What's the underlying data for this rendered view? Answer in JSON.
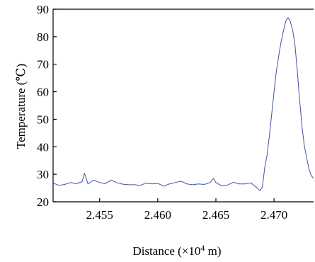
{
  "chart_data": {
    "type": "line",
    "title": "",
    "xlabel": "Distance (×10",
    "xlabel_exponent": "4",
    "xlabel_unit": " m)",
    "ylabel": "Temperature (℃)",
    "xlim": [
      2.451,
      2.4734
    ],
    "ylim": [
      20,
      90
    ],
    "x_ticks": [
      2.455,
      2.46,
      2.465,
      2.47
    ],
    "x_tick_labels": [
      "2.455",
      "2.460",
      "2.465",
      "2.470"
    ],
    "y_ticks": [
      20,
      30,
      40,
      50,
      60,
      70,
      80,
      90
    ],
    "y_tick_labels": [
      "20",
      "30",
      "40",
      "50",
      "60",
      "70",
      "80",
      "90"
    ],
    "grid": false,
    "line_color": "#3f51a8",
    "series": [
      {
        "points": [
          [
            2.451,
            26.8
          ],
          [
            2.4515,
            26.0
          ],
          [
            2.452,
            26.3
          ],
          [
            2.4525,
            27.0
          ],
          [
            2.453,
            26.6
          ],
          [
            2.4535,
            27.3
          ],
          [
            2.4537,
            30.4
          ],
          [
            2.454,
            26.5
          ],
          [
            2.4545,
            27.9
          ],
          [
            2.455,
            27.0
          ],
          [
            2.4555,
            26.6
          ],
          [
            2.456,
            27.9
          ],
          [
            2.4565,
            26.9
          ],
          [
            2.457,
            26.4
          ],
          [
            2.4575,
            26.2
          ],
          [
            2.458,
            26.2
          ],
          [
            2.4585,
            26.0
          ],
          [
            2.459,
            26.8
          ],
          [
            2.4595,
            26.5
          ],
          [
            2.46,
            26.7
          ],
          [
            2.4605,
            25.7
          ],
          [
            2.461,
            26.5
          ],
          [
            2.4615,
            27.0
          ],
          [
            2.462,
            27.5
          ],
          [
            2.4625,
            26.5
          ],
          [
            2.463,
            26.2
          ],
          [
            2.4635,
            26.5
          ],
          [
            2.464,
            26.3
          ],
          [
            2.4645,
            27.0
          ],
          [
            2.4648,
            28.5
          ],
          [
            2.465,
            27.0
          ],
          [
            2.4655,
            25.8
          ],
          [
            2.466,
            26.1
          ],
          [
            2.4665,
            27.1
          ],
          [
            2.467,
            26.5
          ],
          [
            2.4675,
            26.5
          ],
          [
            2.468,
            26.9
          ],
          [
            2.4685,
            25.2
          ],
          [
            2.4688,
            24.0
          ],
          [
            2.469,
            25.5
          ],
          [
            2.4692,
            32.5
          ],
          [
            2.4694,
            37.0
          ],
          [
            2.4696,
            44.0
          ],
          [
            2.4698,
            52.0
          ],
          [
            2.47,
            60.0
          ],
          [
            2.4702,
            67.5
          ],
          [
            2.4704,
            73.0
          ],
          [
            2.4706,
            78.0
          ],
          [
            2.4708,
            82.0
          ],
          [
            2.471,
            85.5
          ],
          [
            2.4712,
            87.0
          ],
          [
            2.4714,
            85.5
          ],
          [
            2.4716,
            82.5
          ],
          [
            2.4718,
            77.0
          ],
          [
            2.472,
            67.5
          ],
          [
            2.4722,
            57.0
          ],
          [
            2.4724,
            47.5
          ],
          [
            2.4726,
            40.5
          ],
          [
            2.4728,
            36.0
          ],
          [
            2.473,
            32.0
          ],
          [
            2.4732,
            29.5
          ],
          [
            2.4734,
            28.5
          ]
        ]
      }
    ]
  }
}
